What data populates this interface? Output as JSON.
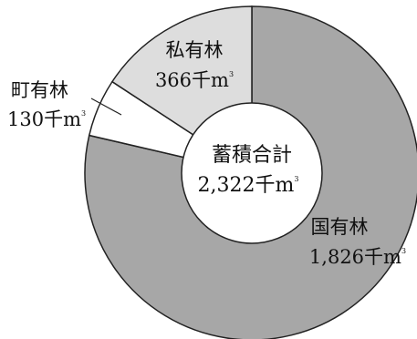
{
  "chart_data": {
    "type": "pie",
    "donut": true,
    "center": {
      "title": "蓄積合計",
      "value": "2,322",
      "unit": "千m",
      "unit_sup": "3"
    },
    "slices": [
      {
        "name": "国有林",
        "value": 1826,
        "value_label": "1,826",
        "unit": "千m",
        "unit_sup": "3",
        "color": "#a7a7a7"
      },
      {
        "name": "町有林",
        "value": 130,
        "value_label": "130",
        "unit": "千m",
        "unit_sup": "3",
        "color": "#ffffff"
      },
      {
        "name": "私有林",
        "value": 366,
        "value_label": "366",
        "unit": "千m",
        "unit_sup": "3",
        "color": "#dddddd"
      }
    ],
    "stroke_color": "#222222"
  }
}
